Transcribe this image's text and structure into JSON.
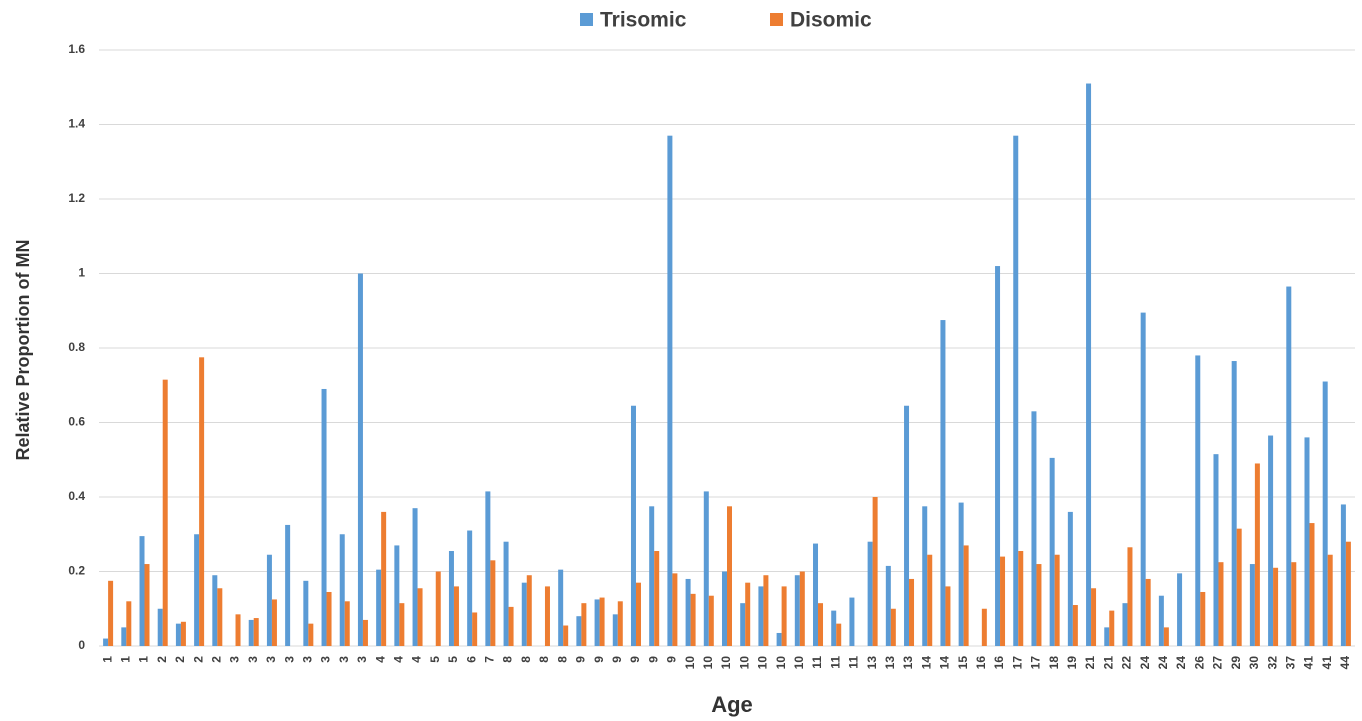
{
  "chart_data": {
    "type": "bar",
    "x_label": "Age",
    "y_label": "Relative Proportion of MN",
    "categories": [
      "1",
      "1",
      "1",
      "2",
      "2",
      "2",
      "2",
      "3",
      "3",
      "3",
      "3",
      "3",
      "3",
      "3",
      "3",
      "4",
      "4",
      "4",
      "5",
      "5",
      "6",
      "7",
      "8",
      "8",
      "8",
      "8",
      "9",
      "9",
      "9",
      "9",
      "9",
      "9",
      "10",
      "10",
      "10",
      "10",
      "10",
      "10",
      "10",
      "11",
      "11",
      "11",
      "13",
      "13",
      "13",
      "14",
      "14",
      "15",
      "16",
      "16",
      "17",
      "17",
      "18",
      "19",
      "21",
      "21",
      "22",
      "24",
      "24",
      "24",
      "26",
      "27",
      "29",
      "30",
      "32",
      "37",
      "41",
      "41",
      "44"
    ],
    "series": [
      {
        "name": "Trisomic",
        "color": "#5b9bd5",
        "values": [
          0.02,
          0.05,
          0.295,
          0.1,
          0.06,
          0.3,
          0.19,
          null,
          0.07,
          0.245,
          0.325,
          0.175,
          0.69,
          0.3,
          1.0,
          0.205,
          0.27,
          0.37,
          null,
          0.255,
          0.31,
          0.415,
          0.28,
          0.17,
          null,
          0.205,
          0.08,
          0.125,
          0.085,
          0.645,
          0.375,
          1.37,
          0.18,
          0.415,
          0.2,
          0.115,
          0.16,
          0.035,
          0.19,
          0.275,
          0.095,
          0.13,
          0.28,
          0.215,
          0.645,
          0.375,
          0.875,
          0.385,
          null,
          1.02,
          1.37,
          0.63,
          0.505,
          0.36,
          1.51,
          0.05,
          0.115,
          0.895,
          0.135,
          0.195,
          0.78,
          0.515,
          0.765,
          0.22,
          0.565,
          0.965,
          0.56,
          0.71,
          0.38
        ]
      },
      {
        "name": "Disomic",
        "color": "#ed7d31",
        "values": [
          0.175,
          0.12,
          0.22,
          0.715,
          0.065,
          0.775,
          0.155,
          0.085,
          0.075,
          0.125,
          null,
          0.06,
          0.145,
          0.12,
          0.07,
          0.36,
          0.115,
          0.155,
          0.2,
          0.16,
          0.09,
          0.23,
          0.105,
          0.19,
          0.16,
          0.055,
          0.115,
          0.13,
          0.12,
          0.17,
          0.255,
          0.195,
          0.14,
          0.135,
          0.375,
          0.17,
          0.19,
          0.16,
          0.2,
          0.115,
          0.06,
          null,
          0.4,
          0.1,
          0.18,
          0.245,
          0.16,
          0.27,
          0.1,
          0.24,
          0.255,
          0.22,
          0.245,
          0.11,
          0.155,
          0.095,
          0.265,
          0.18,
          0.05,
          null,
          0.145,
          0.225,
          0.315,
          0.49,
          0.21,
          0.225,
          0.33,
          0.245,
          0.28
        ]
      }
    ],
    "ylim": [
      0,
      1.6
    ],
    "yticks": [
      0,
      0.2,
      0.4,
      0.6,
      0.8,
      1,
      1.2,
      1.4,
      1.6
    ],
    "grid": true,
    "legend": "top"
  }
}
